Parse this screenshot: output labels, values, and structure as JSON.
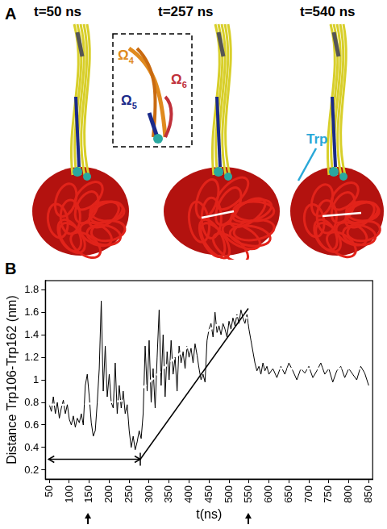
{
  "panel_a": {
    "label": "A",
    "times": [
      "t=50 ns",
      "t=257 ns",
      "t=540 ns"
    ],
    "loops": [
      "Ω4",
      "Ω5",
      "Ω6"
    ],
    "residue": "Trp"
  },
  "panel_b_label": "B",
  "chart_data": {
    "type": "line",
    "x_label": "t(ns)",
    "y_label": "Distance Trp106-Trp162 (nm)",
    "xlim": [
      40,
      860
    ],
    "xticks": [
      50,
      100,
      150,
      200,
      250,
      300,
      350,
      400,
      450,
      500,
      550,
      600,
      650,
      700,
      750,
      800,
      850
    ],
    "ylim": [
      0.12,
      1.88
    ],
    "yticks": [
      0.2,
      0.4,
      0.6,
      0.8,
      1.0,
      1.2,
      1.4,
      1.6,
      1.8
    ],
    "grid": false,
    "series": [
      {
        "color": "#000000",
        "line_style": "solid",
        "x": [
          50,
          55,
          60,
          65,
          70,
          75,
          80,
          85,
          90,
          95,
          100,
          105,
          110,
          115,
          120,
          125,
          130,
          135,
          140,
          145,
          150,
          155,
          160,
          165,
          170,
          175,
          180,
          185,
          190,
          195,
          200,
          205,
          210,
          215,
          220,
          225,
          230,
          235,
          240,
          245,
          250,
          255,
          260,
          265,
          270,
          275,
          280,
          285,
          290,
          295,
          300,
          305,
          310,
          315,
          320,
          325,
          330,
          335,
          340,
          345,
          350,
          355,
          360,
          365,
          370,
          375,
          380,
          385,
          390,
          395,
          400,
          405,
          410,
          415,
          420,
          425,
          430,
          435,
          440,
          445,
          450,
          455,
          460,
          465,
          470,
          475,
          480,
          485,
          490,
          495,
          500,
          505,
          510,
          515,
          520,
          525,
          530,
          535,
          540,
          545,
          550,
          555,
          560,
          565,
          570,
          575,
          580,
          585,
          590,
          595,
          600,
          610,
          620,
          630,
          640,
          650,
          660,
          670,
          680,
          690,
          700,
          710,
          720,
          730,
          740,
          750,
          760,
          770,
          780,
          790,
          800,
          810,
          820,
          830,
          840,
          850
        ],
        "values": [
          0.78,
          0.72,
          0.85,
          0.7,
          0.8,
          0.66,
          0.75,
          0.82,
          0.7,
          0.78,
          0.65,
          0.6,
          0.68,
          0.58,
          0.66,
          0.62,
          0.7,
          0.6,
          0.95,
          1.05,
          0.85,
          0.62,
          0.5,
          0.55,
          0.8,
          1.1,
          1.7,
          0.9,
          1.3,
          0.85,
          1.05,
          0.8,
          0.75,
          1.15,
          0.7,
          0.95,
          0.75,
          0.9,
          0.7,
          0.78,
          0.55,
          0.4,
          0.5,
          0.38,
          0.45,
          0.55,
          0.48,
          0.7,
          1.3,
          0.9,
          1.35,
          0.8,
          1.1,
          0.75,
          1.2,
          1.62,
          0.95,
          1.4,
          0.85,
          1.25,
          1.0,
          1.35,
          1.05,
          1.2,
          0.9,
          1.3,
          1.15,
          1.25,
          1.1,
          1.3,
          1.2,
          1.28,
          1.15,
          1.32,
          1.22,
          1.1,
          1.0,
          1.05,
          0.98,
          1.35,
          1.45,
          1.5,
          1.38,
          1.6,
          1.42,
          1.48,
          1.4,
          1.5,
          1.45,
          1.38,
          1.52,
          1.45,
          1.55,
          1.48,
          1.58,
          1.5,
          1.62,
          1.55,
          1.5,
          1.58,
          1.45,
          1.35,
          1.25,
          1.15,
          1.08,
          1.12,
          1.05,
          1.15,
          1.08,
          1.12,
          1.05,
          1.1,
          1.02,
          1.12,
          1.05,
          1.15,
          1.08,
          1.0,
          1.1,
          1.06,
          1.12,
          1.02,
          1.08,
          1.15,
          1.05,
          1.1,
          0.98,
          1.08,
          1.12,
          1.02,
          1.1,
          1.05,
          1.0,
          1.12,
          1.06,
          0.95
        ]
      },
      {
        "color": "#ffffff",
        "line_style": "dashed",
        "x": [
          50,
          100,
          150,
          200,
          250,
          300,
          350,
          400,
          450,
          500,
          540,
          560,
          580,
          600,
          650,
          700,
          750,
          800,
          850
        ],
        "values": [
          0.78,
          0.78,
          0.79,
          0.8,
          0.84,
          0.98,
          1.15,
          1.3,
          1.44,
          1.54,
          1.56,
          1.42,
          1.22,
          1.12,
          1.1,
          1.1,
          1.1,
          1.1,
          1.1
        ]
      }
    ]
  }
}
